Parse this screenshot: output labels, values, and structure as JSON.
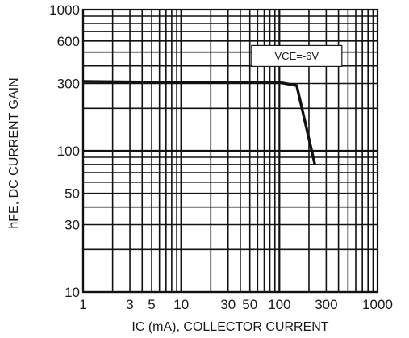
{
  "chart_data": {
    "type": "line",
    "title": "",
    "xlabel": "IC (mA), COLLECTOR CURRENT",
    "ylabel": "hFE, DC CURRENT GAIN",
    "xscale": "log",
    "yscale": "log",
    "xlim": [
      1,
      1000
    ],
    "ylim": [
      10,
      1000
    ],
    "grid": true,
    "x_ticks": [
      {
        "value": 1,
        "label": "1"
      },
      {
        "value": 3,
        "label": "3"
      },
      {
        "value": 5,
        "label": "5"
      },
      {
        "value": 10,
        "label": "10"
      },
      {
        "value": 30,
        "label": "30"
      },
      {
        "value": 50,
        "label": "50"
      },
      {
        "value": 100,
        "label": "100"
      },
      {
        "value": 300,
        "label": "300"
      },
      {
        "value": 1000,
        "label": "1000"
      }
    ],
    "y_ticks": [
      {
        "value": 10,
        "label": "10"
      },
      {
        "value": 30,
        "label": "30"
      },
      {
        "value": 50,
        "label": "50"
      },
      {
        "value": 100,
        "label": "100"
      },
      {
        "value": 300,
        "label": "300"
      },
      {
        "value": 600,
        "label": "600"
      },
      {
        "value": 1000,
        "label": "1000"
      }
    ],
    "annotation": {
      "text": "VCE=-6V",
      "x": 150,
      "y": 470
    },
    "series": [
      {
        "points": [
          {
            "x": 1,
            "y": 310
          },
          {
            "x": 10,
            "y": 305
          },
          {
            "x": 50,
            "y": 305
          },
          {
            "x": 100,
            "y": 305
          },
          {
            "x": 150,
            "y": 290
          },
          {
            "x": 230,
            "y": 80
          }
        ]
      }
    ]
  }
}
